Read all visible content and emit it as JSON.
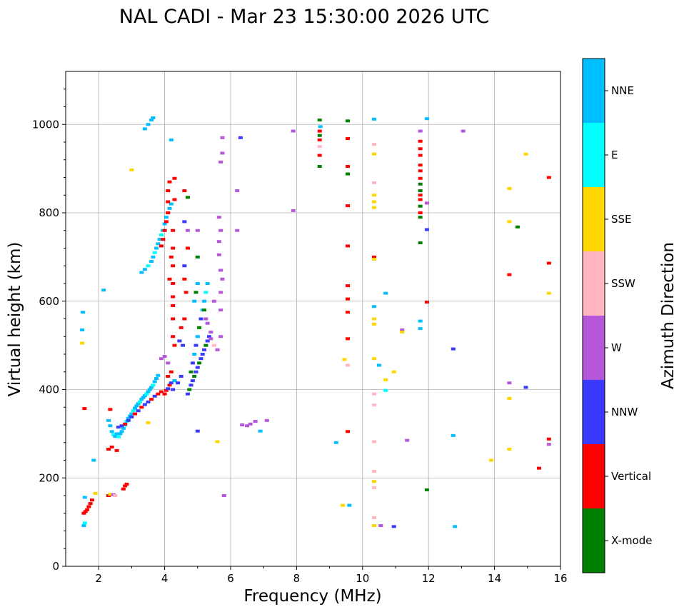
{
  "chart_data": {
    "type": "scatter",
    "title": "NAL CADI - Mar 23 15:30:00 2026 UTC",
    "xlabel": "Frequency (MHz)",
    "ylabel": "Virtual height (km)",
    "xlim": [
      1,
      16
    ],
    "ylim": [
      0,
      1120
    ],
    "xticks": [
      "2",
      "4",
      "6",
      "8",
      "10",
      "12",
      "14",
      "16"
    ],
    "yticks": [
      "0",
      "200",
      "400",
      "600",
      "800",
      "1000"
    ],
    "grid": true,
    "colorbar": {
      "label": "Azimuth Direction",
      "categories": [
        {
          "name": "X-mode",
          "color": "#008000"
        },
        {
          "name": "Vertical",
          "color": "#ff0000"
        },
        {
          "name": "NNW",
          "color": "#3a3aff"
        },
        {
          "name": "W",
          "color": "#b457d8"
        },
        {
          "name": "SSW",
          "color": "#ffb6c1"
        },
        {
          "name": "SSE",
          "color": "#ffd700"
        },
        {
          "name": "E",
          "color": "#00ffff"
        },
        {
          "name": "NNE",
          "color": "#00bfff"
        }
      ]
    },
    "points": [
      [
        1.55,
        120,
        "Vertical"
      ],
      [
        1.6,
        124,
        "Vertical"
      ],
      [
        1.65,
        128,
        "Vertical"
      ],
      [
        1.7,
        135,
        "Vertical"
      ],
      [
        1.75,
        142,
        "Vertical"
      ],
      [
        1.8,
        150,
        "Vertical"
      ],
      [
        1.55,
        92,
        "NNE"
      ],
      [
        1.58,
        98,
        "E"
      ],
      [
        1.58,
        156,
        "NNE"
      ],
      [
        1.52,
        575,
        "NNE"
      ],
      [
        1.5,
        505,
        "SSE"
      ],
      [
        1.5,
        535,
        "NNE"
      ],
      [
        1.57,
        357,
        "Vertical"
      ],
      [
        1.85,
        240,
        "NNE"
      ],
      [
        1.9,
        165,
        "SSE"
      ],
      [
        2.15,
        625,
        "NNE"
      ],
      [
        2.3,
        160,
        "Vertical"
      ],
      [
        2.35,
        163,
        "SSE"
      ],
      [
        2.45,
        162,
        "W"
      ],
      [
        2.5,
        160,
        "SSW"
      ],
      [
        2.3,
        265,
        "Vertical"
      ],
      [
        2.4,
        270,
        "Vertical"
      ],
      [
        2.55,
        262,
        "Vertical"
      ],
      [
        2.75,
        175,
        "Vertical"
      ],
      [
        2.8,
        182,
        "Vertical"
      ],
      [
        2.85,
        186,
        "Vertical"
      ],
      [
        3.0,
        897,
        "SSE"
      ],
      [
        2.3,
        330,
        "NNE"
      ],
      [
        2.35,
        318,
        "NNE"
      ],
      [
        2.4,
        305,
        "NNE"
      ],
      [
        2.45,
        298,
        "E"
      ],
      [
        2.5,
        294,
        "NNE"
      ],
      [
        2.55,
        300,
        "NNE"
      ],
      [
        2.6,
        293,
        "E"
      ],
      [
        2.65,
        300,
        "NNE"
      ],
      [
        2.7,
        305,
        "NNE"
      ],
      [
        2.75,
        312,
        "NNE"
      ],
      [
        2.8,
        320,
        "NNE"
      ],
      [
        2.85,
        328,
        "E"
      ],
      [
        2.9,
        335,
        "NNE"
      ],
      [
        2.95,
        340,
        "NNE"
      ],
      [
        3.0,
        345,
        "NNE"
      ],
      [
        3.05,
        352,
        "E"
      ],
      [
        3.1,
        358,
        "NNE"
      ],
      [
        3.15,
        363,
        "NNE"
      ],
      [
        3.2,
        368,
        "NNE"
      ],
      [
        3.25,
        372,
        "E"
      ],
      [
        3.3,
        378,
        "NNE"
      ],
      [
        3.35,
        382,
        "NNE"
      ],
      [
        3.4,
        386,
        "NNE"
      ],
      [
        3.45,
        390,
        "E"
      ],
      [
        3.5,
        395,
        "NNE"
      ],
      [
        3.55,
        400,
        "NNE"
      ],
      [
        3.6,
        405,
        "NNE"
      ],
      [
        3.65,
        410,
        "E"
      ],
      [
        3.7,
        418,
        "NNE"
      ],
      [
        3.75,
        425,
        "NNE"
      ],
      [
        3.8,
        432,
        "NNE"
      ],
      [
        2.6,
        315,
        "NNW"
      ],
      [
        2.7,
        318,
        "NNW"
      ],
      [
        2.8,
        322,
        "Vertical"
      ],
      [
        2.9,
        330,
        "NNW"
      ],
      [
        3.0,
        338,
        "NNW"
      ],
      [
        3.1,
        345,
        "Vertical"
      ],
      [
        3.2,
        352,
        "NNW"
      ],
      [
        3.3,
        360,
        "Vertical"
      ],
      [
        3.4,
        366,
        "NNW"
      ],
      [
        3.5,
        372,
        "NNW"
      ],
      [
        3.6,
        378,
        "Vertical"
      ],
      [
        3.7,
        385,
        "NNW"
      ],
      [
        3.8,
        390,
        "Vertical"
      ],
      [
        3.9,
        395,
        "Vertical"
      ],
      [
        4.0,
        390,
        "Vertical"
      ],
      [
        4.05,
        398,
        "Vertical"
      ],
      [
        4.1,
        402,
        "NNW"
      ],
      [
        4.15,
        410,
        "Vertical"
      ],
      [
        2.35,
        355,
        "Vertical"
      ],
      [
        3.5,
        325,
        "SSE"
      ],
      [
        3.3,
        665,
        "NNE"
      ],
      [
        3.4,
        672,
        "NNE"
      ],
      [
        3.5,
        680,
        "E"
      ],
      [
        3.6,
        690,
        "NNE"
      ],
      [
        3.65,
        700,
        "NNE"
      ],
      [
        3.7,
        710,
        "E"
      ],
      [
        3.75,
        720,
        "NNE"
      ],
      [
        3.8,
        730,
        "NNE"
      ],
      [
        3.85,
        740,
        "NNE"
      ],
      [
        3.9,
        750,
        "E"
      ],
      [
        3.95,
        760,
        "NNE"
      ],
      [
        4.0,
        775,
        "NNE"
      ],
      [
        4.05,
        790,
        "NNE"
      ],
      [
        4.1,
        800,
        "NNE"
      ],
      [
        4.15,
        810,
        "NNE"
      ],
      [
        4.2,
        820,
        "NNE"
      ],
      [
        3.4,
        990,
        "NNE"
      ],
      [
        3.5,
        1000,
        "NNE"
      ],
      [
        3.6,
        1010,
        "NNE"
      ],
      [
        3.65,
        1015,
        "NNE"
      ],
      [
        4.2,
        965,
        "NNE"
      ],
      [
        3.9,
        725,
        "Vertical"
      ],
      [
        3.95,
        740,
        "Vertical"
      ],
      [
        4.0,
        760,
        "Vertical"
      ],
      [
        4.05,
        780,
        "Vertical"
      ],
      [
        4.1,
        800,
        "Vertical"
      ],
      [
        4.1,
        825,
        "Vertical"
      ],
      [
        4.1,
        850,
        "Vertical"
      ],
      [
        4.15,
        870,
        "Vertical"
      ],
      [
        4.3,
        878,
        "Vertical"
      ],
      [
        4.3,
        830,
        "Vertical"
      ],
      [
        4.25,
        760,
        "Vertical"
      ],
      [
        4.25,
        720,
        "Vertical"
      ],
      [
        4.25,
        680,
        "Vertical"
      ],
      [
        4.25,
        640,
        "Vertical"
      ],
      [
        4.25,
        610,
        "Vertical"
      ],
      [
        4.25,
        590,
        "Vertical"
      ],
      [
        4.25,
        560,
        "Vertical"
      ],
      [
        4.25,
        520,
        "Vertical"
      ],
      [
        4.3,
        500,
        "Vertical"
      ],
      [
        4.15,
        650,
        "Vertical"
      ],
      [
        4.2,
        700,
        "Vertical"
      ],
      [
        4.6,
        680,
        "NNW"
      ],
      [
        4.6,
        650,
        "Vertical"
      ],
      [
        4.7,
        760,
        "W"
      ],
      [
        4.6,
        850,
        "Vertical"
      ],
      [
        4.7,
        835,
        "X-mode"
      ],
      [
        4.6,
        780,
        "NNW"
      ],
      [
        4.7,
        720,
        "Vertical"
      ],
      [
        4.65,
        620,
        "Vertical"
      ],
      [
        4.6,
        560,
        "Vertical"
      ],
      [
        3.9,
        470,
        "W"
      ],
      [
        4.0,
        475,
        "W"
      ],
      [
        4.1,
        460,
        "W"
      ],
      [
        4.2,
        440,
        "Vertical"
      ],
      [
        4.1,
        430,
        "Vertical"
      ],
      [
        4.3,
        420,
        "X-mode"
      ],
      [
        4.2,
        415,
        "NNW"
      ],
      [
        4.25,
        400,
        "NNW"
      ],
      [
        4.3,
        420,
        "NNE"
      ],
      [
        4.4,
        415,
        "NNW"
      ],
      [
        4.5,
        430,
        "NNW"
      ],
      [
        4.45,
        510,
        "NNW"
      ],
      [
        4.55,
        500,
        "NNW"
      ],
      [
        4.5,
        540,
        "Vertical"
      ],
      [
        4.7,
        390,
        "NNW"
      ],
      [
        4.75,
        400,
        "X-mode"
      ],
      [
        4.8,
        410,
        "NNW"
      ],
      [
        4.85,
        420,
        "NNW"
      ],
      [
        4.9,
        430,
        "X-mode"
      ],
      [
        4.95,
        440,
        "NNW"
      ],
      [
        5.0,
        450,
        "NNW"
      ],
      [
        5.05,
        460,
        "X-mode"
      ],
      [
        5.1,
        470,
        "NNW"
      ],
      [
        5.15,
        480,
        "NNW"
      ],
      [
        5.2,
        490,
        "NNW"
      ],
      [
        5.25,
        500,
        "X-mode"
      ],
      [
        5.3,
        510,
        "NNW"
      ],
      [
        5.35,
        520,
        "NNW"
      ],
      [
        4.8,
        440,
        "X-mode"
      ],
      [
        4.85,
        460,
        "NNW"
      ],
      [
        4.9,
        480,
        "NNE"
      ],
      [
        4.95,
        500,
        "NNW"
      ],
      [
        5.0,
        520,
        "NNE"
      ],
      [
        5.05,
        540,
        "X-mode"
      ],
      [
        5.1,
        560,
        "NNW"
      ],
      [
        5.15,
        580,
        "NNE"
      ],
      [
        5.2,
        600,
        "NNE"
      ],
      [
        5.25,
        620,
        "E"
      ],
      [
        5.3,
        640,
        "NNE"
      ],
      [
        4.9,
        600,
        "NNE"
      ],
      [
        4.95,
        620,
        "X-mode"
      ],
      [
        5.0,
        640,
        "NNE"
      ],
      [
        5.0,
        700,
        "X-mode"
      ],
      [
        5.2,
        580,
        "X-mode"
      ],
      [
        5.25,
        560,
        "W"
      ],
      [
        5.3,
        550,
        "W"
      ],
      [
        5.4,
        530,
        "W"
      ],
      [
        5.4,
        515,
        "W"
      ],
      [
        5.5,
        500,
        "SSW"
      ],
      [
        5.0,
        760,
        "W"
      ],
      [
        5.5,
        600,
        "W"
      ],
      [
        5.6,
        490,
        "W"
      ],
      [
        5.7,
        520,
        "W"
      ],
      [
        5.7,
        580,
        "W"
      ],
      [
        5.7,
        620,
        "W"
      ],
      [
        5.75,
        650,
        "W"
      ],
      [
        5.7,
        670,
        "W"
      ],
      [
        5.65,
        705,
        "W"
      ],
      [
        5.65,
        735,
        "W"
      ],
      [
        5.7,
        760,
        "W"
      ],
      [
        5.65,
        790,
        "W"
      ],
      [
        5.7,
        915,
        "W"
      ],
      [
        5.75,
        935,
        "W"
      ],
      [
        5.75,
        970,
        "W"
      ],
      [
        6.3,
        970,
        "NNW"
      ],
      [
        6.2,
        850,
        "W"
      ],
      [
        6.2,
        760,
        "W"
      ],
      [
        5.0,
        306,
        "NNW"
      ],
      [
        5.6,
        282,
        "SSE"
      ],
      [
        5.8,
        160,
        "W"
      ],
      [
        6.35,
        320,
        "W"
      ],
      [
        6.5,
        318,
        "W"
      ],
      [
        6.6,
        322,
        "W"
      ],
      [
        6.75,
        328,
        "W"
      ],
      [
        6.9,
        306,
        "NNE"
      ],
      [
        7.1,
        330,
        "W"
      ],
      [
        7.9,
        985,
        "W"
      ],
      [
        7.9,
        805,
        "W"
      ],
      [
        8.7,
        1010,
        "X-mode"
      ],
      [
        8.72,
        995,
        "NNE"
      ],
      [
        8.7,
        985,
        "Vertical"
      ],
      [
        8.7,
        975,
        "X-mode"
      ],
      [
        8.7,
        965,
        "Vertical"
      ],
      [
        8.7,
        950,
        "SSW"
      ],
      [
        8.7,
        930,
        "Vertical"
      ],
      [
        8.7,
        905,
        "X-mode"
      ],
      [
        9.55,
        1008,
        "X-mode"
      ],
      [
        9.55,
        968,
        "Vertical"
      ],
      [
        9.55,
        905,
        "Vertical"
      ],
      [
        9.55,
        888,
        "X-mode"
      ],
      [
        9.55,
        816,
        "Vertical"
      ],
      [
        9.55,
        725,
        "Vertical"
      ],
      [
        9.55,
        635,
        "Vertical"
      ],
      [
        9.55,
        605,
        "Vertical"
      ],
      [
        9.55,
        575,
        "Vertical"
      ],
      [
        9.55,
        515,
        "Vertical"
      ],
      [
        9.55,
        455,
        "SSW"
      ],
      [
        9.55,
        305,
        "Vertical"
      ],
      [
        9.45,
        468,
        "SSE"
      ],
      [
        9.4,
        138,
        "SSE"
      ],
      [
        9.6,
        138,
        "NNE"
      ],
      [
        9.2,
        280,
        "NNE"
      ],
      [
        10.35,
        1012,
        "NNE"
      ],
      [
        10.35,
        955,
        "SSW"
      ],
      [
        10.35,
        933,
        "SSE"
      ],
      [
        10.35,
        868,
        "SSW"
      ],
      [
        10.35,
        840,
        "SSE"
      ],
      [
        10.35,
        825,
        "SSE"
      ],
      [
        10.35,
        812,
        "SSE"
      ],
      [
        10.35,
        700,
        "Vertical"
      ],
      [
        10.35,
        695,
        "SSE"
      ],
      [
        10.35,
        588,
        "NNE"
      ],
      [
        10.35,
        560,
        "SSE"
      ],
      [
        10.35,
        548,
        "SSE"
      ],
      [
        10.35,
        470,
        "SSE"
      ],
      [
        10.35,
        390,
        "SSW"
      ],
      [
        10.35,
        365,
        "SSW"
      ],
      [
        10.35,
        282,
        "SSW"
      ],
      [
        10.35,
        215,
        "SSW"
      ],
      [
        10.35,
        192,
        "SSE"
      ],
      [
        10.35,
        178,
        "SSW"
      ],
      [
        10.35,
        110,
        "SSW"
      ],
      [
        10.35,
        92,
        "SSE"
      ],
      [
        10.55,
        92,
        "W"
      ],
      [
        10.5,
        455,
        "NNE"
      ],
      [
        10.7,
        618,
        "NNE"
      ],
      [
        10.7,
        422,
        "SSE"
      ],
      [
        10.7,
        398,
        "E"
      ],
      [
        10.95,
        440,
        "SSE"
      ],
      [
        11.2,
        535,
        "W"
      ],
      [
        11.2,
        530,
        "SSE"
      ],
      [
        11.35,
        285,
        "W"
      ],
      [
        10.95,
        90,
        "NNW"
      ],
      [
        11.75,
        985,
        "W"
      ],
      [
        11.75,
        962,
        "Vertical"
      ],
      [
        11.75,
        945,
        "Vertical"
      ],
      [
        11.75,
        930,
        "Vertical"
      ],
      [
        11.75,
        908,
        "Vertical"
      ],
      [
        11.75,
        895,
        "Vertical"
      ],
      [
        11.75,
        878,
        "Vertical"
      ],
      [
        11.75,
        865,
        "X-mode"
      ],
      [
        11.75,
        850,
        "X-mode"
      ],
      [
        11.75,
        840,
        "Vertical"
      ],
      [
        11.75,
        830,
        "Vertical"
      ],
      [
        11.75,
        815,
        "X-mode"
      ],
      [
        11.75,
        800,
        "Vertical"
      ],
      [
        11.75,
        790,
        "X-mode"
      ],
      [
        11.95,
        822,
        "W"
      ],
      [
        11.95,
        762,
        "NNW"
      ],
      [
        11.75,
        732,
        "X-mode"
      ],
      [
        11.95,
        598,
        "Vertical"
      ],
      [
        11.75,
        555,
        "NNE"
      ],
      [
        11.75,
        538,
        "NNE"
      ],
      [
        11.95,
        1013,
        "NNE"
      ],
      [
        11.95,
        173,
        "X-mode"
      ],
      [
        12.75,
        492,
        "NNW"
      ],
      [
        12.75,
        296,
        "NNE"
      ],
      [
        12.8,
        90,
        "NNE"
      ],
      [
        13.05,
        985,
        "W"
      ],
      [
        13.9,
        240,
        "SSE"
      ],
      [
        14.45,
        855,
        "SSE"
      ],
      [
        14.45,
        780,
        "SSE"
      ],
      [
        14.45,
        660,
        "Vertical"
      ],
      [
        14.45,
        415,
        "W"
      ],
      [
        14.45,
        380,
        "SSE"
      ],
      [
        14.45,
        265,
        "SSE"
      ],
      [
        14.7,
        768,
        "X-mode"
      ],
      [
        14.95,
        405,
        "NNW"
      ],
      [
        14.95,
        933,
        "SSE"
      ],
      [
        15.35,
        222,
        "Vertical"
      ],
      [
        15.65,
        880,
        "Vertical"
      ],
      [
        15.65,
        686,
        "Vertical"
      ],
      [
        15.65,
        618,
        "SSE"
      ],
      [
        15.65,
        288,
        "Vertical"
      ],
      [
        15.65,
        276,
        "W"
      ]
    ]
  }
}
